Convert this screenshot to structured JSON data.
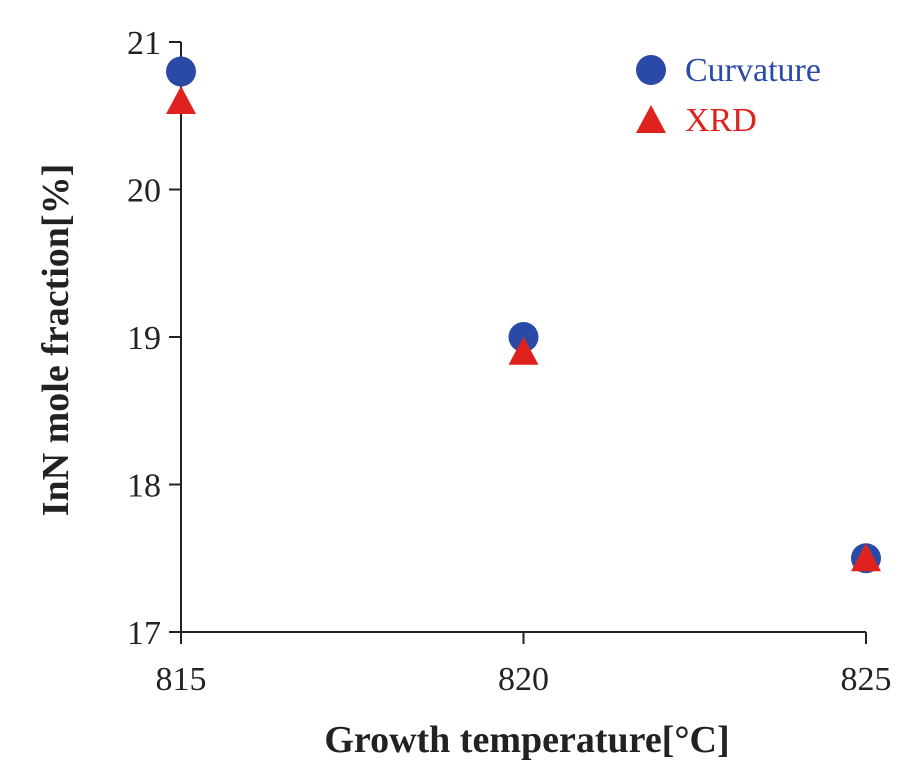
{
  "chart_data": {
    "type": "scatter",
    "title": "",
    "xlabel": "Growth temperature[°C]",
    "ylabel": "InN mole fraction[%]",
    "xlim": [
      815,
      825
    ],
    "ylim": [
      17,
      21
    ],
    "xticks": [
      815,
      820,
      825
    ],
    "yticks": [
      17,
      18,
      19,
      20,
      21
    ],
    "grid": false,
    "legend_position": "top-right",
    "series": [
      {
        "name": "Curvature",
        "marker": "circle",
        "color": "#2b4aa8",
        "x": [
          815,
          820,
          825
        ],
        "y": [
          20.8,
          19.0,
          17.5
        ]
      },
      {
        "name": "XRD",
        "marker": "triangle",
        "color": "#e0221f",
        "x": [
          815,
          820,
          825
        ],
        "y": [
          20.6,
          18.9,
          17.5
        ]
      }
    ]
  }
}
